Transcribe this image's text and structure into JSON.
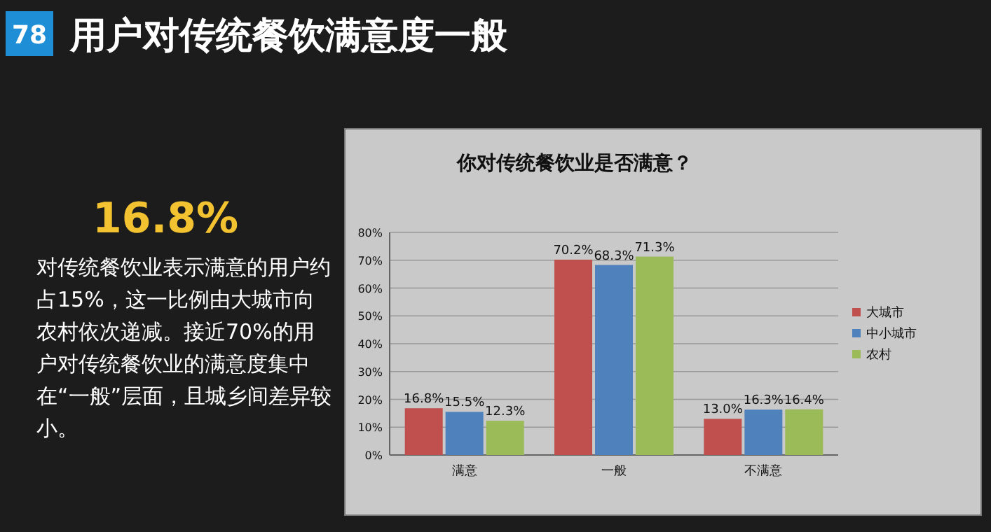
{
  "chart_data": {
    "type": "bar",
    "title": "用户对传统餐饮满意度一般",
    "subtitle": "你对传统餐饮业是否满意？",
    "annotations": [
      "78",
      "16.8%",
      "对传统餐饮业表示满意的用户约占15%，这一比例由大城市向农村依次递减。接近70%的用户对传统餐饮业的满意度集中在“一般”层面，且城乡间差异较小。"
    ],
    "categories": [
      "满意",
      "一般",
      "不满意"
    ],
    "series": [
      {
        "name": "大城市",
        "color": "#c0504d",
        "values": [
          16.8,
          70.2,
          13.0
        ],
        "value_labels": [
          "16.8%",
          "70.2%",
          "13.0%"
        ]
      },
      {
        "name": "中小城市",
        "color": "#4f81bd",
        "values": [
          15.5,
          68.3,
          16.3
        ],
        "value_labels": [
          "15.5%",
          "68.3%",
          "16.3%"
        ]
      },
      {
        "name": "农村",
        "color": "#9bbb59",
        "values": [
          12.3,
          71.3,
          16.4
        ],
        "value_labels": [
          "12.3%",
          "71.3%",
          "16.4%"
        ]
      }
    ],
    "ylim": [
      0,
      80
    ],
    "yticks": [
      {
        "value": 0,
        "label": "0%"
      },
      {
        "value": 10,
        "label": "10%"
      },
      {
        "value": 20,
        "label": "20%"
      },
      {
        "value": 30,
        "label": "30%"
      },
      {
        "value": 40,
        "label": "40%"
      },
      {
        "value": 50,
        "label": "50%"
      },
      {
        "value": 60,
        "label": "60%"
      },
      {
        "value": 70,
        "label": "70%"
      },
      {
        "value": 80,
        "label": "80%"
      }
    ],
    "grid": "y",
    "legend": "right"
  }
}
